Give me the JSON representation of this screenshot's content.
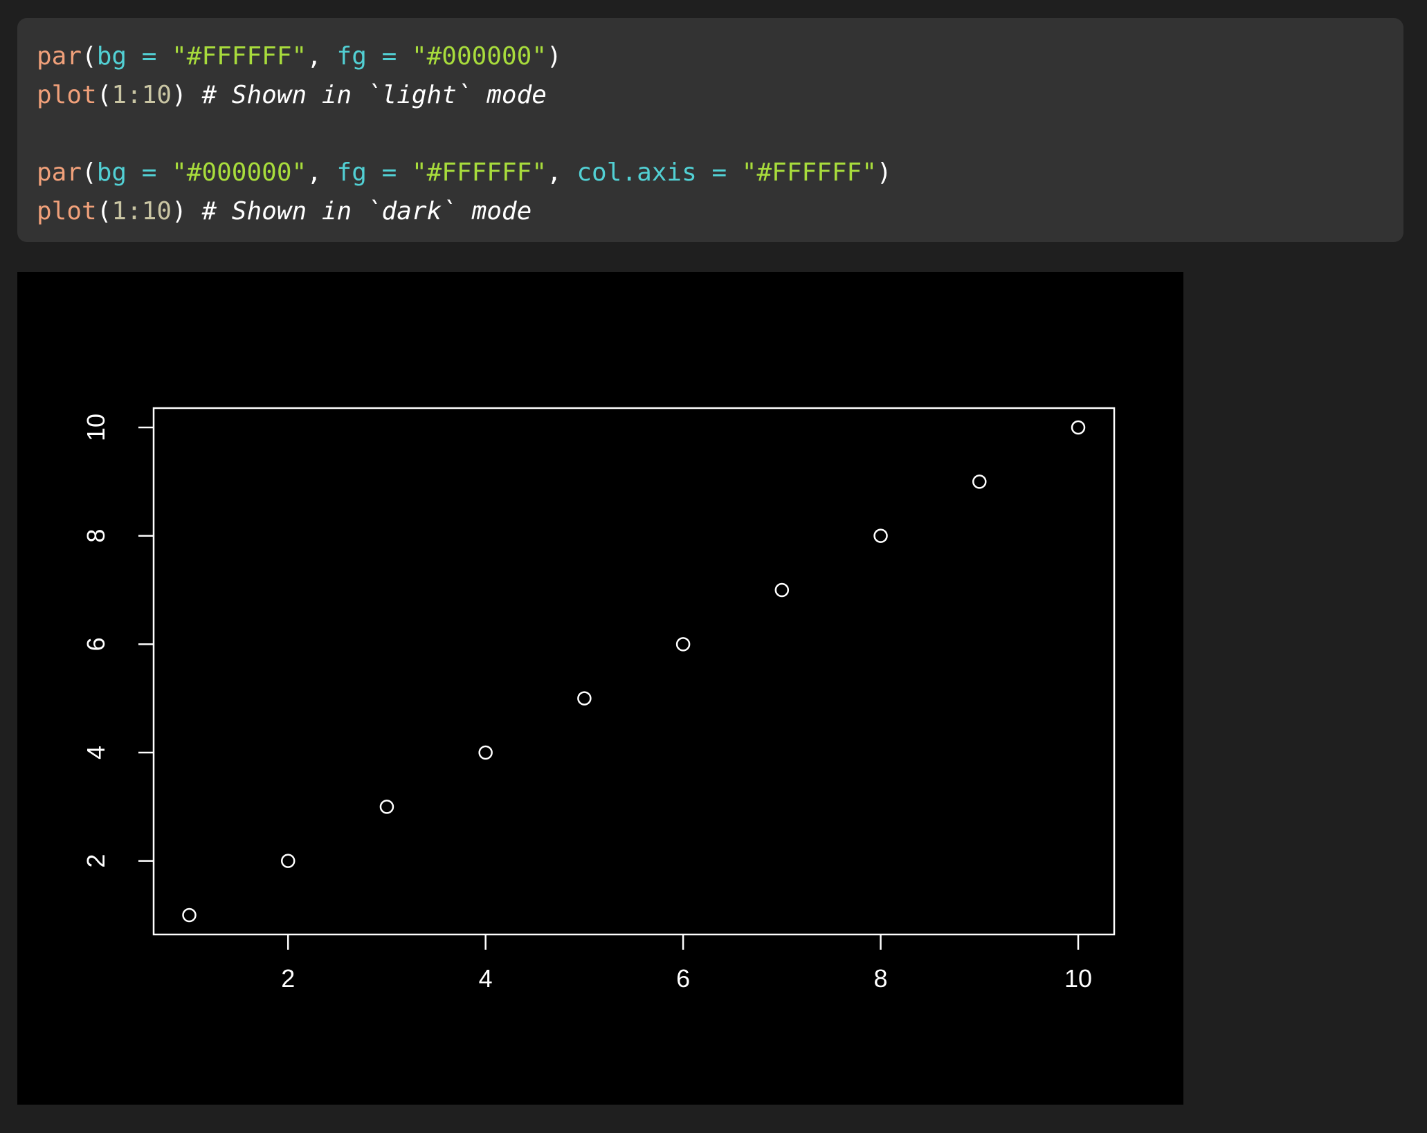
{
  "code_block": {
    "lines": [
      [
        {
          "t": "par",
          "c": "fn"
        },
        {
          "t": "(",
          "c": "p"
        },
        {
          "t": "bg",
          "c": "arg"
        },
        {
          "t": " = ",
          "c": "arg"
        },
        {
          "t": "\"#FFFFFF\"",
          "c": "str"
        },
        {
          "t": ", ",
          "c": "p"
        },
        {
          "t": "fg",
          "c": "arg"
        },
        {
          "t": " = ",
          "c": "arg"
        },
        {
          "t": "\"#000000\"",
          "c": "str"
        },
        {
          "t": ")",
          "c": "p"
        }
      ],
      [
        {
          "t": "plot",
          "c": "fn"
        },
        {
          "t": "(",
          "c": "p"
        },
        {
          "t": "1:10",
          "c": "num"
        },
        {
          "t": ") ",
          "c": "p"
        },
        {
          "t": "# Shown in `light` mode",
          "c": "cm"
        }
      ],
      [],
      [
        {
          "t": "par",
          "c": "fn"
        },
        {
          "t": "(",
          "c": "p"
        },
        {
          "t": "bg",
          "c": "arg"
        },
        {
          "t": " = ",
          "c": "arg"
        },
        {
          "t": "\"#000000\"",
          "c": "str"
        },
        {
          "t": ", ",
          "c": "p"
        },
        {
          "t": "fg",
          "c": "arg"
        },
        {
          "t": " = ",
          "c": "arg"
        },
        {
          "t": "\"#FFFFFF\"",
          "c": "str"
        },
        {
          "t": ", ",
          "c": "p"
        },
        {
          "t": "col.axis",
          "c": "arg"
        },
        {
          "t": " = ",
          "c": "arg"
        },
        {
          "t": "\"#FFFFFF\"",
          "c": "str"
        },
        {
          "t": ")",
          "c": "p"
        }
      ],
      [
        {
          "t": "plot",
          "c": "fn"
        },
        {
          "t": "(",
          "c": "p"
        },
        {
          "t": "1:10",
          "c": "num"
        },
        {
          "t": ") ",
          "c": "p"
        },
        {
          "t": "# Shown in `dark` mode",
          "c": "cm"
        }
      ]
    ]
  },
  "colors": {
    "background": "#1f1f1f",
    "code_bg": "#333333",
    "plot_bg": "#000000",
    "plot_fg": "#FFFFFF"
  },
  "chart_data": {
    "type": "scatter",
    "x": [
      1,
      2,
      3,
      4,
      5,
      6,
      7,
      8,
      9,
      10
    ],
    "y": [
      1,
      2,
      3,
      4,
      5,
      6,
      7,
      8,
      9,
      10
    ],
    "marker": "open-circle",
    "xticks": [
      "2",
      "4",
      "6",
      "8",
      "10"
    ],
    "yticks": [
      "2",
      "4",
      "6",
      "8",
      "10"
    ],
    "xlim": [
      0.64,
      10.36
    ],
    "ylim": [
      0.64,
      10.36
    ],
    "grid": false,
    "title": "",
    "xlabel": "",
    "ylabel": ""
  }
}
